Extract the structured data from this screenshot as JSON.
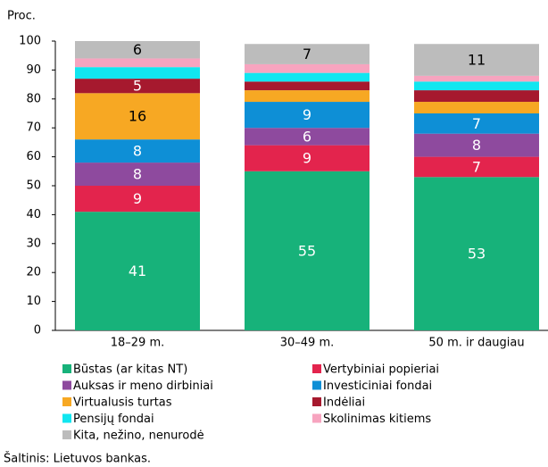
{
  "chart_data": {
    "type": "stacked_bar",
    "y_label": "Proc.",
    "categories": [
      "18–29 m.",
      "30–49 m.",
      "50 m. ir daugiau"
    ],
    "series": [
      {
        "name": "Būstas (ar kitas NT)",
        "color": "#17b27a",
        "values": [
          41,
          55,
          53
        ]
      },
      {
        "name": "Vertybiniai popieriai",
        "color": "#e3244d",
        "values": [
          9,
          9,
          7
        ]
      },
      {
        "name": "Auksas ir meno dirbiniai",
        "color": "#8e4a9e",
        "values": [
          8,
          6,
          8
        ]
      },
      {
        "name": "Investiciniai fondai",
        "color": "#0e8fd6",
        "values": [
          8,
          9,
          7
        ]
      },
      {
        "name": "Virtualusis turtas",
        "color": "#f7a823",
        "values": [
          16,
          4,
          4
        ]
      },
      {
        "name": "Indėliai",
        "color": "#a6192e",
        "values": [
          5,
          3,
          4
        ]
      },
      {
        "name": "Pensijų fondai",
        "color": "#11e6f0",
        "values": [
          4,
          3,
          3
        ]
      },
      {
        "name": "Skolinimas kitiems",
        "color": "#f7a4bf",
        "values": [
          3,
          3,
          2
        ]
      },
      {
        "name": "Kita, nežino, nenurodė",
        "color": "#bcbcbc",
        "values": [
          6,
          7,
          11
        ]
      }
    ],
    "ylim": [
      0,
      100
    ],
    "yticks": [
      0,
      10,
      20,
      30,
      40,
      50,
      60,
      70,
      80,
      90,
      100
    ],
    "source": "Šaltinis: Lietuvos bankas."
  }
}
